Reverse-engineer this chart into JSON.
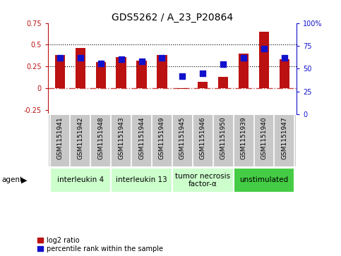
{
  "title": "GDS5262 / A_23_P20864",
  "samples": [
    "GSM1151941",
    "GSM1151942",
    "GSM1151948",
    "GSM1151943",
    "GSM1151944",
    "GSM1151949",
    "GSM1151945",
    "GSM1151946",
    "GSM1151950",
    "GSM1151939",
    "GSM1151940",
    "GSM1151947"
  ],
  "log2_ratio": [
    0.38,
    0.46,
    0.3,
    0.36,
    0.32,
    0.38,
    -0.01,
    0.07,
    0.13,
    0.4,
    0.65,
    0.33
  ],
  "percentile": [
    62,
    62,
    56,
    60,
    58,
    62,
    42,
    45,
    55,
    62,
    72,
    62
  ],
  "bar_color": "#bb1111",
  "dot_color": "#1111cc",
  "ylim_left": [
    -0.3,
    0.75
  ],
  "ylim_right": [
    0,
    100
  ],
  "yticks_left": [
    -0.25,
    0.0,
    0.25,
    0.5,
    0.75
  ],
  "yticks_right": [
    0,
    25,
    50,
    75,
    100
  ],
  "ytick_labels_left": [
    "-0.25",
    "0",
    "0.25",
    "0.5",
    "0.75"
  ],
  "ytick_labels_right": [
    "0",
    "25",
    "50",
    "75",
    "100%"
  ],
  "hline_zero_color": "#cc4444",
  "hline_025_color": "black",
  "hline_050_color": "black",
  "groups": [
    {
      "label": "interleukin 4",
      "start": 0,
      "end": 3,
      "color": "#ccffcc"
    },
    {
      "label": "interleukin 13",
      "start": 3,
      "end": 6,
      "color": "#ccffcc"
    },
    {
      "label": "tumor necrosis\nfactor-α",
      "start": 6,
      "end": 9,
      "color": "#ccffcc"
    },
    {
      "label": "unstimulated",
      "start": 9,
      "end": 12,
      "color": "#44cc44"
    }
  ],
  "bar_width": 0.5,
  "dot_size": 28,
  "agent_label": "agent",
  "legend_red": "log2 ratio",
  "legend_blue": "percentile rank within the sample",
  "bg_color": "#ffffff",
  "plot_bg": "#ffffff",
  "tick_area_bg": "#c8c8c8",
  "tick_fontsize": 7,
  "title_fontsize": 10,
  "label_fontsize": 6.5,
  "group_fontsize": 7.5
}
